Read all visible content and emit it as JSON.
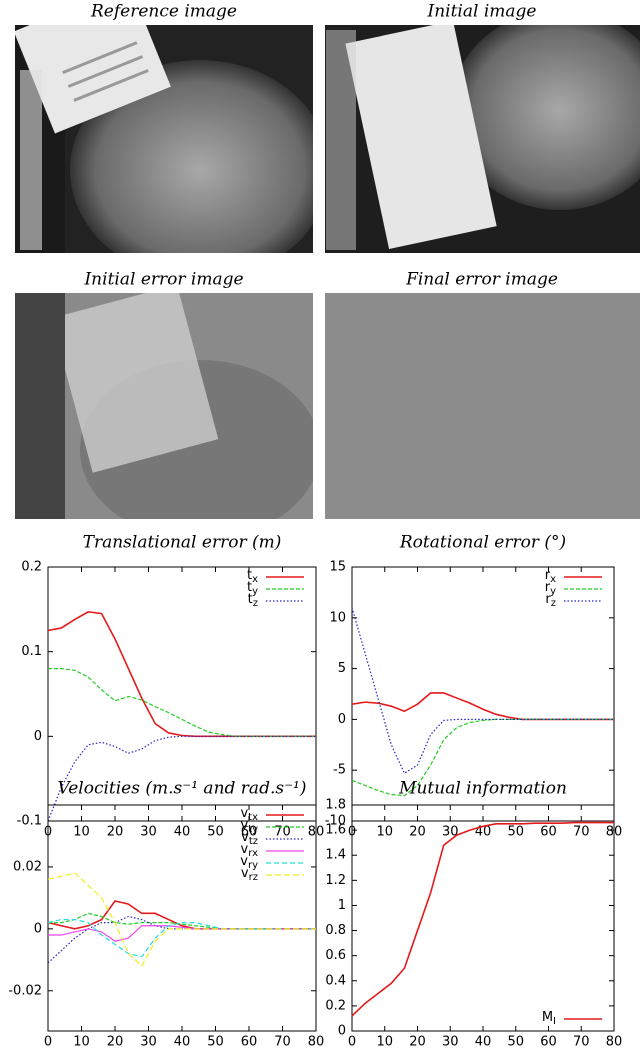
{
  "images": [
    {
      "title": "Reference image"
    },
    {
      "title": "Initial image"
    },
    {
      "title": "Initial error image"
    },
    {
      "title": "Final error image"
    }
  ],
  "chart_data": [
    {
      "type": "line",
      "title": "Translational error (m)",
      "legend": "upper right",
      "x": [
        0,
        4,
        8,
        12,
        16,
        20,
        24,
        28,
        32,
        36,
        40,
        44,
        48,
        52,
        56,
        60,
        64,
        68,
        72,
        76,
        80
      ],
      "xlim": [
        0,
        80
      ],
      "xticks": [
        0,
        10,
        20,
        30,
        40,
        50,
        60,
        70,
        80
      ],
      "ylim": [
        -0.1,
        0.2
      ],
      "yticks": [
        -0.1,
        0,
        0.1,
        0.2
      ],
      "series": [
        {
          "name": "tx",
          "color": "#e41a1c",
          "values": [
            0.125,
            0.128,
            0.138,
            0.147,
            0.145,
            0.115,
            0.08,
            0.045,
            0.015,
            0.004,
            0.001,
            0,
            0,
            0,
            0,
            0,
            0,
            0,
            0,
            0,
            0
          ]
        },
        {
          "name": "ty",
          "color": "#22cc22",
          "values": [
            0.08,
            0.08,
            0.078,
            0.07,
            0.055,
            0.042,
            0.047,
            0.043,
            0.035,
            0.028,
            0.02,
            0.012,
            0.005,
            0.002,
            0,
            0,
            0,
            0,
            0,
            0,
            0
          ]
        },
        {
          "name": "tz",
          "color": "#2222cc",
          "values": [
            -0.1,
            -0.06,
            -0.03,
            -0.01,
            -0.007,
            -0.012,
            -0.02,
            -0.015,
            -0.005,
            -0.001,
            0,
            0,
            0,
            0,
            0,
            0,
            0,
            0,
            0,
            0,
            0
          ]
        }
      ]
    },
    {
      "type": "line",
      "title": "Rotational error (°)",
      "legend": "upper right",
      "x": [
        0,
        4,
        8,
        12,
        16,
        20,
        24,
        28,
        32,
        36,
        40,
        44,
        48,
        52,
        56,
        60,
        64,
        68,
        72,
        76,
        80
      ],
      "xlim": [
        0,
        80
      ],
      "xticks": [
        0,
        10,
        20,
        30,
        40,
        50,
        60,
        70,
        80
      ],
      "ylim": [
        -10,
        15
      ],
      "yticks": [
        -10,
        -5,
        0,
        5,
        10,
        15
      ],
      "series": [
        {
          "name": "rx",
          "color": "#e41a1c",
          "values": [
            1.5,
            1.7,
            1.6,
            1.3,
            0.8,
            1.5,
            2.6,
            2.6,
            2.1,
            1.6,
            1.0,
            0.5,
            0.2,
            0,
            0,
            0,
            0,
            0,
            0,
            0,
            0
          ]
        },
        {
          "name": "ry",
          "color": "#22cc22",
          "values": [
            -6,
            -6.5,
            -7,
            -7.4,
            -7.5,
            -6.5,
            -4.5,
            -2,
            -0.8,
            -0.3,
            -0.1,
            0,
            0,
            0,
            0,
            0,
            0,
            0,
            0,
            0,
            0
          ]
        },
        {
          "name": "rz",
          "color": "#2222cc",
          "values": [
            11,
            6.5,
            2,
            -2.5,
            -5.3,
            -4.5,
            -1.5,
            -0.1,
            0,
            0,
            0,
            0,
            0,
            0,
            0,
            0,
            0,
            0,
            0,
            0,
            0
          ]
        }
      ]
    },
    {
      "type": "line",
      "title": "Velocities (m.s⁻¹ and rad.s⁻¹)",
      "legend": "upper right",
      "x": [
        0,
        4,
        8,
        12,
        16,
        20,
        24,
        28,
        32,
        36,
        40,
        44,
        48,
        52,
        56,
        60,
        64,
        68,
        72,
        76,
        80
      ],
      "xlim": [
        0,
        80
      ],
      "xticks": [
        0,
        10,
        20,
        30,
        40,
        50,
        60,
        70,
        80
      ],
      "ylim": [
        -0.033,
        0.04
      ],
      "yticks": [
        -0.02,
        0,
        0.02
      ],
      "series": [
        {
          "name": "vtx",
          "color": "#e41a1c",
          "values": [
            0.002,
            0.001,
            0,
            0.001,
            0.003,
            0.009,
            0.008,
            0.005,
            0.005,
            0.003,
            0.001,
            0,
            0,
            0,
            0,
            0,
            0,
            0,
            0,
            0,
            0
          ]
        },
        {
          "name": "vty",
          "color": "#22cc22",
          "values": [
            0.002,
            0.002,
            0.003,
            0.005,
            0.004,
            0.002,
            0.0015,
            0.002,
            0.002,
            0.002,
            0.0015,
            0.001,
            0.0005,
            0,
            0,
            0,
            0,
            0,
            0,
            0,
            0
          ]
        },
        {
          "name": "vtz",
          "color": "#2222cc",
          "values": [
            -0.011,
            -0.007,
            -0.003,
            0,
            0.002,
            0.002,
            0.004,
            0.003,
            0.001,
            0,
            0,
            0,
            0,
            0,
            0,
            0,
            0,
            0,
            0,
            0,
            0
          ]
        },
        {
          "name": "vrx",
          "color": "#ee44ee",
          "values": [
            -0.002,
            -0.002,
            -0.001,
            0,
            -0.001,
            -0.004,
            -0.003,
            0.001,
            0.001,
            0.001,
            0.0005,
            0,
            0,
            0,
            0,
            0,
            0,
            0,
            0,
            0,
            0
          ]
        },
        {
          "name": "vry",
          "color": "#22dddd",
          "values": [
            0.002,
            0.003,
            0.003,
            0.002,
            -0.002,
            -0.005,
            -0.008,
            -0.009,
            -0.003,
            0.001,
            0.002,
            0.002,
            0.001,
            0,
            0,
            0,
            0,
            0,
            0,
            0,
            0
          ]
        },
        {
          "name": "vrz",
          "color": "#eeee22",
          "values": [
            0.016,
            0.017,
            0.018,
            0.014,
            0.01,
            0.002,
            -0.008,
            -0.012,
            -0.004,
            0,
            0,
            0,
            0,
            0,
            0,
            0,
            0,
            0,
            0,
            0,
            0
          ]
        }
      ]
    },
    {
      "type": "line",
      "title": "Mutual information",
      "legend": "lower right",
      "x": [
        0,
        4,
        8,
        12,
        16,
        20,
        24,
        28,
        32,
        36,
        40,
        44,
        48,
        52,
        56,
        60,
        64,
        68,
        72,
        76,
        80
      ],
      "xlim": [
        0,
        80
      ],
      "xticks": [
        0,
        10,
        20,
        30,
        40,
        50,
        60,
        70,
        80
      ],
      "ylim": [
        0,
        1.8
      ],
      "yticks": [
        0,
        0.2,
        0.4,
        0.6,
        0.8,
        1,
        1.2,
        1.4,
        1.6,
        1.8
      ],
      "series": [
        {
          "name": "MI",
          "color": "#e41a1c",
          "values": [
            0.12,
            0.22,
            0.3,
            0.38,
            0.5,
            0.8,
            1.1,
            1.48,
            1.56,
            1.6,
            1.63,
            1.65,
            1.65,
            1.65,
            1.655,
            1.655,
            1.655,
            1.66,
            1.66,
            1.66,
            1.66
          ]
        }
      ]
    }
  ]
}
